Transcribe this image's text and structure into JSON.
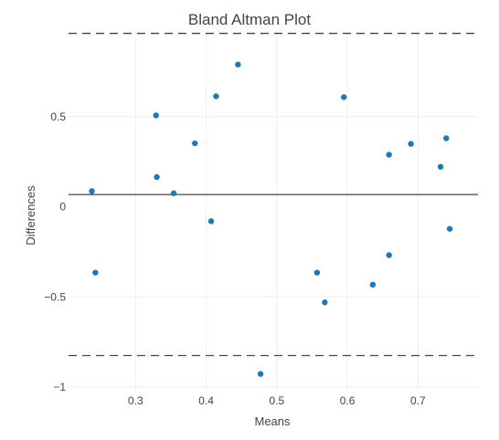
{
  "chart_data": {
    "type": "scatter",
    "title": "Bland Altman Plot",
    "xlabel": "Means",
    "ylabel": "Differences",
    "xlim": [
      0.205,
      0.785
    ],
    "ylim": [
      -1.02,
      0.98
    ],
    "xticks": [
      {
        "value": 0.3,
        "label": "0.3"
      },
      {
        "value": 0.4,
        "label": "0.4"
      },
      {
        "value": 0.5,
        "label": "0.5"
      },
      {
        "value": 0.6,
        "label": "0.6"
      },
      {
        "value": 0.7,
        "label": "0.7"
      }
    ],
    "yticks": [
      {
        "value": -1,
        "label": "−1"
      },
      {
        "value": -0.5,
        "label": "−0.5"
      },
      {
        "value": 0,
        "label": "0"
      },
      {
        "value": 0.5,
        "label": "0.5"
      }
    ],
    "grid": true,
    "mean_difference": 0.068,
    "limits_of_agreement": [
      -0.825,
      0.962
    ],
    "colors": {
      "points": "#1f77b4",
      "lines": "#444444",
      "grid": "#eeeeee",
      "text": "#444444"
    },
    "points": [
      {
        "x": 0.238,
        "y": 0.087
      },
      {
        "x": 0.243,
        "y": -0.365
      },
      {
        "x": 0.329,
        "y": 0.507
      },
      {
        "x": 0.33,
        "y": 0.165
      },
      {
        "x": 0.354,
        "y": 0.075
      },
      {
        "x": 0.384,
        "y": 0.352
      },
      {
        "x": 0.407,
        "y": -0.08
      },
      {
        "x": 0.414,
        "y": 0.613
      },
      {
        "x": 0.445,
        "y": 0.789
      },
      {
        "x": 0.477,
        "y": -0.927
      },
      {
        "x": 0.557,
        "y": -0.365
      },
      {
        "x": 0.568,
        "y": -0.53
      },
      {
        "x": 0.595,
        "y": 0.608
      },
      {
        "x": 0.636,
        "y": -0.432
      },
      {
        "x": 0.659,
        "y": 0.289
      },
      {
        "x": 0.659,
        "y": -0.268
      },
      {
        "x": 0.69,
        "y": 0.349
      },
      {
        "x": 0.732,
        "y": 0.222
      },
      {
        "x": 0.74,
        "y": 0.38
      },
      {
        "x": 0.745,
        "y": -0.122
      }
    ]
  }
}
